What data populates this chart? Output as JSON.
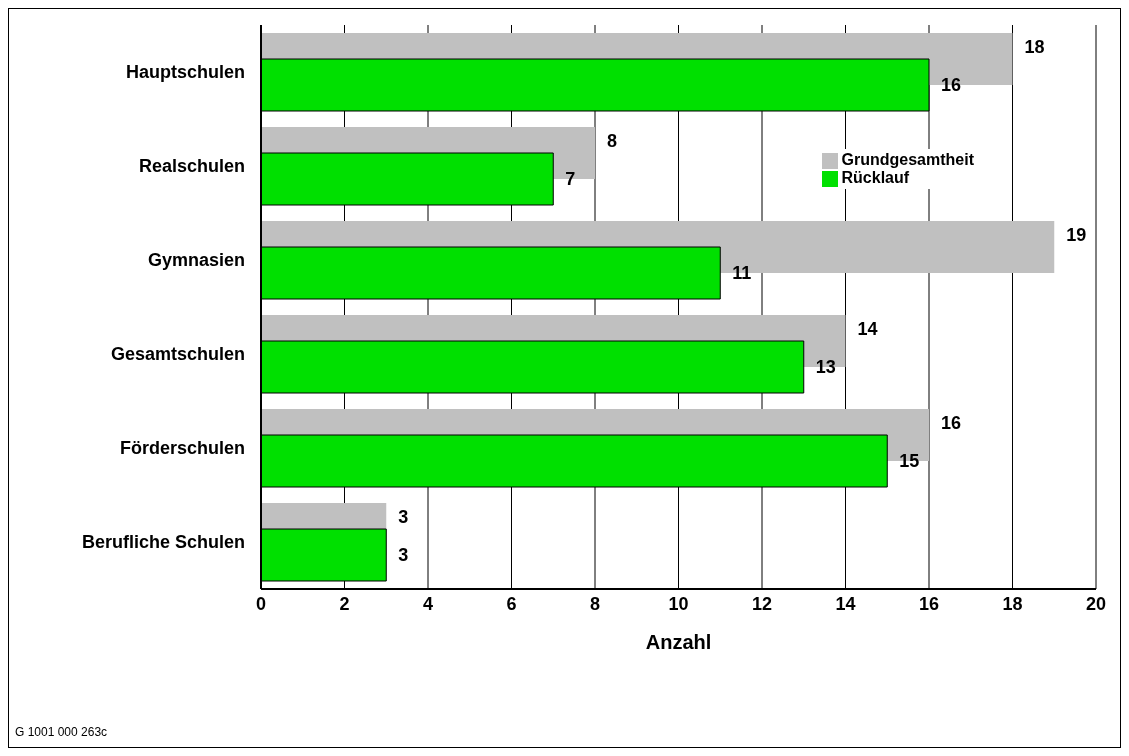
{
  "chart_data": {
    "type": "bar",
    "orientation": "horizontal",
    "xlabel": "Anzahl",
    "categories": [
      "Hauptschulen",
      "Realschulen",
      "Gymnasien",
      "Gesamtschulen",
      "Förderschulen",
      "Berufliche Schulen"
    ],
    "series": [
      {
        "name": "Grundgesamtheit",
        "color": "#c0c0c0",
        "values": [
          18,
          8,
          19,
          14,
          16,
          3
        ]
      },
      {
        "name": "Rücklauf",
        "color": "#00e000",
        "values": [
          16,
          7,
          11,
          13,
          15,
          3
        ]
      }
    ],
    "xlim": [
      0,
      20
    ],
    "xticks": [
      0,
      2,
      4,
      6,
      8,
      10,
      12,
      14,
      16,
      18,
      20
    ],
    "grid": "x",
    "legend": "top right",
    "data_labels": true,
    "annotations": [
      "G 1001 000 263c"
    ]
  }
}
